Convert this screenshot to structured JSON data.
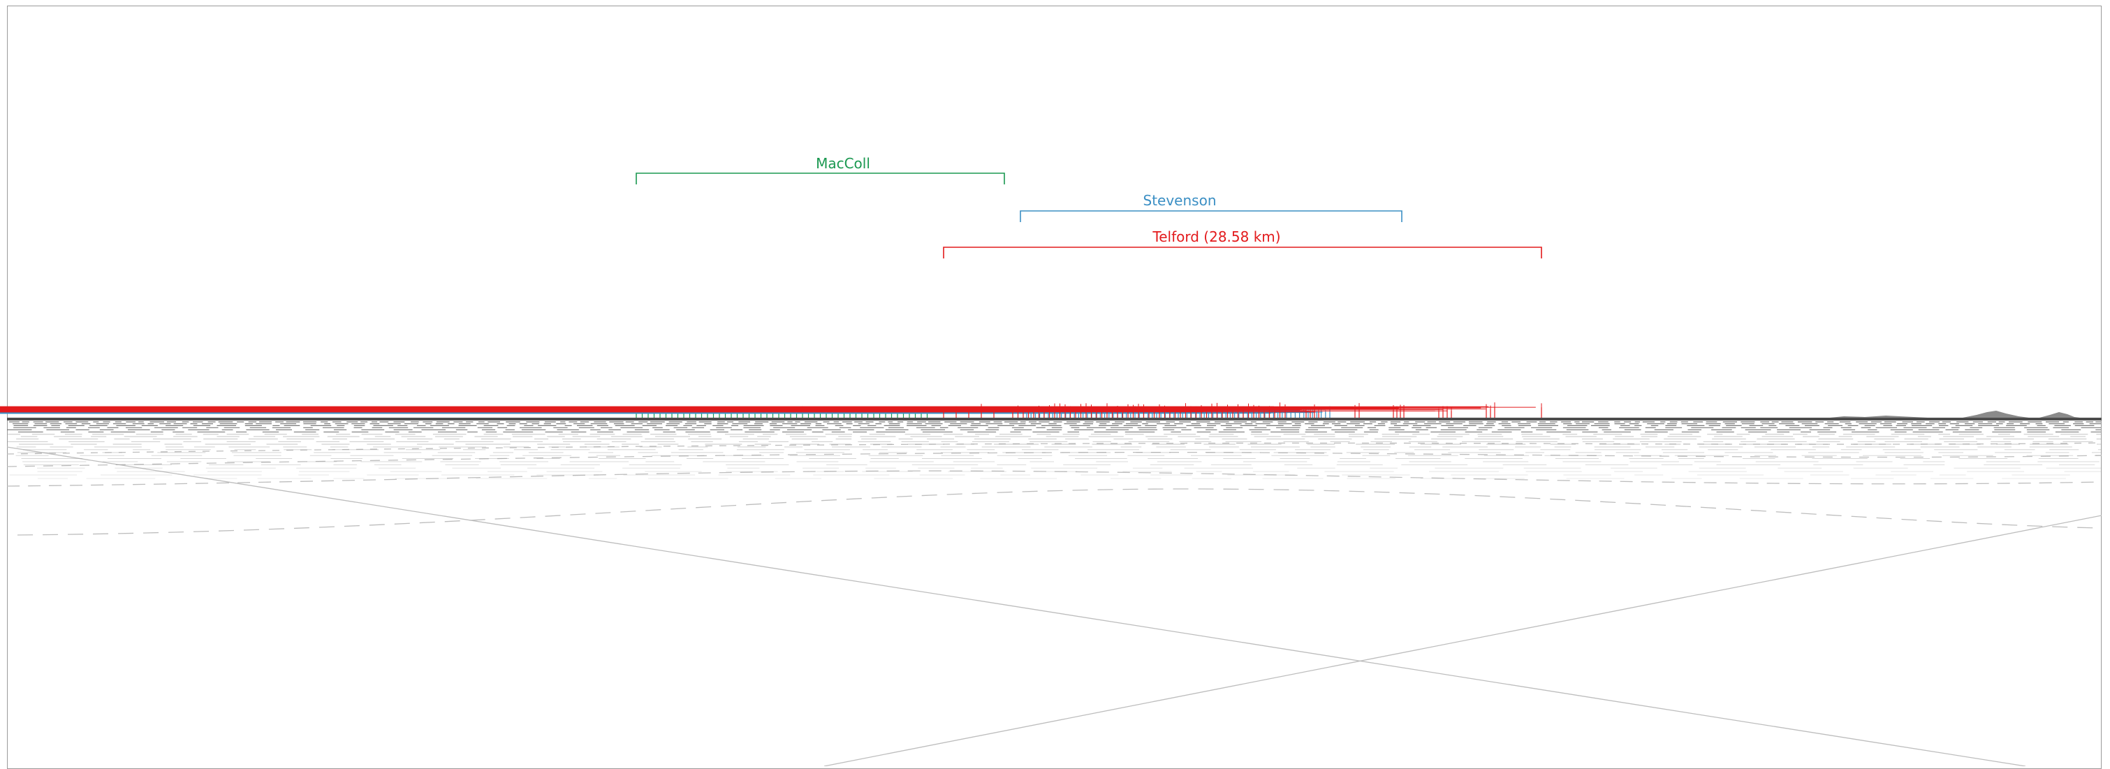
{
  "wind_farms": [
    {
      "name": "MacColl",
      "label": "MacColl",
      "color": "#1a9850"
    },
    {
      "name": "Stevenson",
      "label": "Stevenson",
      "color": "#3b8fc4"
    },
    {
      "name": "Telford",
      "label": "Telford (28.58 km)",
      "color": "#e31a1c"
    }
  ],
  "colors": {
    "frame": "#9a9a9a",
    "sea": "#4d4d4d",
    "grid": "#bdbdbd",
    "land": "#8a8a8a"
  }
}
